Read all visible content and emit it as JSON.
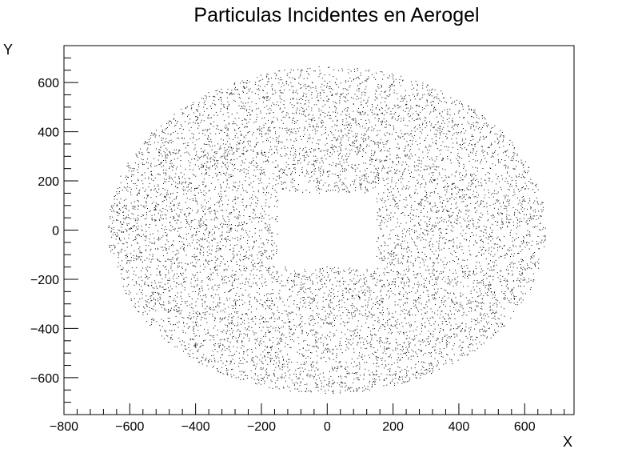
{
  "chart_data": {
    "type": "scatter",
    "title": "Particulas Incidentes en Aerogel",
    "xlabel": "X",
    "ylabel": "Y",
    "xlim": [
      -800,
      750
    ],
    "ylim": [
      -750,
      750
    ],
    "x_ticks": [
      -800,
      -600,
      -400,
      -200,
      0,
      200,
      400,
      600
    ],
    "y_ticks": [
      -600,
      -400,
      -200,
      0,
      200,
      400,
      600
    ],
    "x_tick_labels": [
      "−800",
      "−600",
      "−400",
      "−200",
      "0",
      "200",
      "400",
      "600"
    ],
    "y_tick_labels": [
      "−600",
      "−400",
      "−200",
      "0",
      "200",
      "400",
      "600"
    ],
    "grid": false,
    "legend": "none",
    "marker_color": "#000000",
    "distribution": {
      "shape": "ellipse",
      "x_range": [
        -665,
        665
      ],
      "y_range": [
        -665,
        665
      ],
      "excluded_rectangle": {
        "x": [
          -150,
          150
        ],
        "y": [
          -150,
          150
        ]
      }
    }
  }
}
